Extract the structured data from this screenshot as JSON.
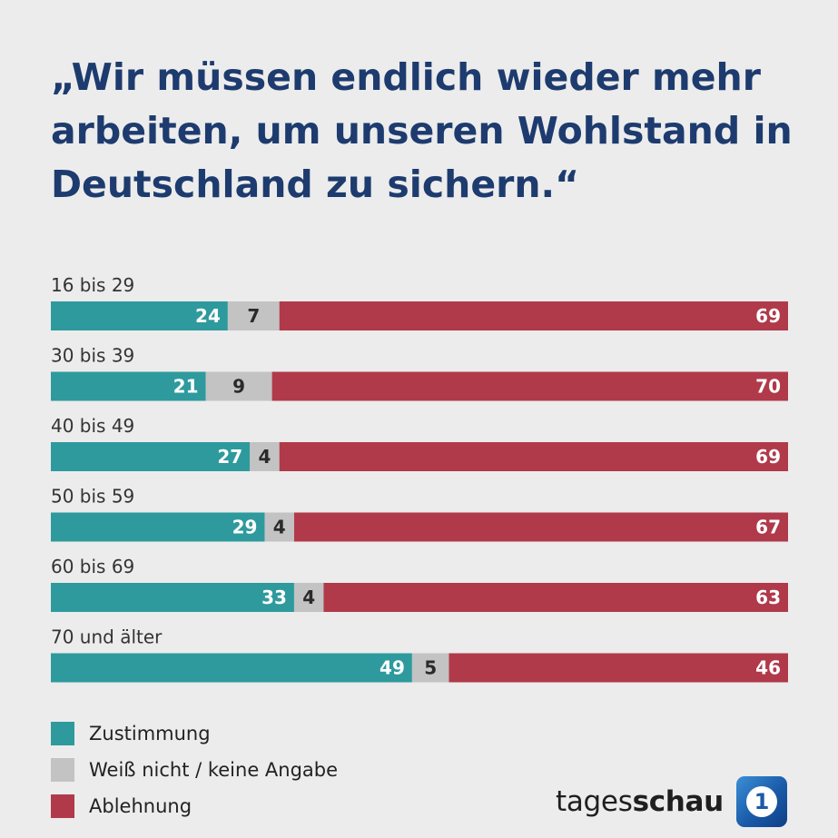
{
  "title": "„Wir müssen endlich wieder mehr arbeiten, um unseren Wohlstand in Deutschland zu sichern.“",
  "colors": {
    "agree": "#2e9a9d",
    "unknown": "#c3c3c3",
    "disagree": "#b03a4a",
    "title": "#1d3b6e"
  },
  "chart_data": {
    "type": "bar",
    "stacked": true,
    "orientation": "horizontal",
    "categories": [
      "16 bis 29",
      "30 bis 39",
      "40 bis 49",
      "50 bis 59",
      "60 bis 69",
      "70 und älter"
    ],
    "series": [
      {
        "name": "Zustimmung",
        "values": [
          24,
          21,
          27,
          29,
          33,
          49
        ]
      },
      {
        "name": "Weiß nicht / keine Angabe",
        "values": [
          7,
          9,
          4,
          4,
          4,
          5
        ]
      },
      {
        "name": "Ablehnung",
        "values": [
          69,
          70,
          69,
          67,
          63,
          46
        ]
      }
    ],
    "xlim": [
      0,
      100
    ],
    "grid": false,
    "legend_position": "bottom-left"
  },
  "legend": [
    {
      "label": "Zustimmung",
      "color": "#2e9a9d"
    },
    {
      "label": "Weiß nicht / keine Angabe",
      "color": "#c3c3c3"
    },
    {
      "label": "Ablehnung",
      "color": "#b03a4a"
    }
  ],
  "brand": {
    "prefix": "tages",
    "suffix": "schau",
    "logo_glyph": "1"
  }
}
